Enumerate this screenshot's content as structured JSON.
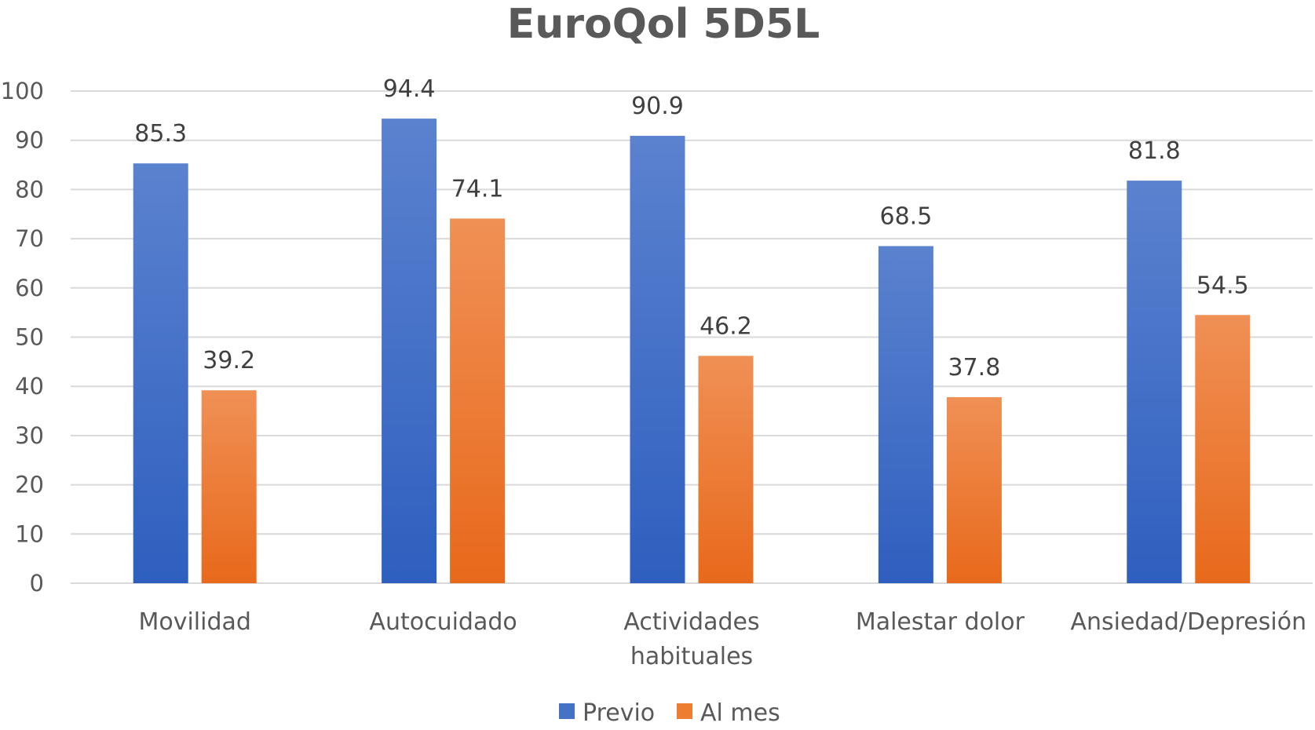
{
  "chart_data": {
    "type": "bar",
    "title": "EuroQol 5D5L",
    "categories": [
      [
        "Movilidad"
      ],
      [
        "Autocuidado"
      ],
      [
        "Actividades",
        "habituales"
      ],
      [
        "Malestar dolor"
      ],
      [
        "Ansiedad/Depresión"
      ]
    ],
    "series": [
      {
        "name": "Previo",
        "values": [
          85.3,
          94.4,
          90.9,
          68.5,
          81.8
        ],
        "color": "#4472c4"
      },
      {
        "name": "Al mes",
        "values": [
          39.2,
          74.1,
          46.2,
          37.8,
          54.5
        ],
        "color": "#ed7d31"
      }
    ],
    "ylim": [
      0,
      100
    ],
    "yticks": [
      0,
      10,
      20,
      30,
      40,
      50,
      60,
      70,
      80,
      90,
      100
    ],
    "grid": true,
    "legend": "bottom-center",
    "xlabel": "",
    "ylabel": ""
  }
}
